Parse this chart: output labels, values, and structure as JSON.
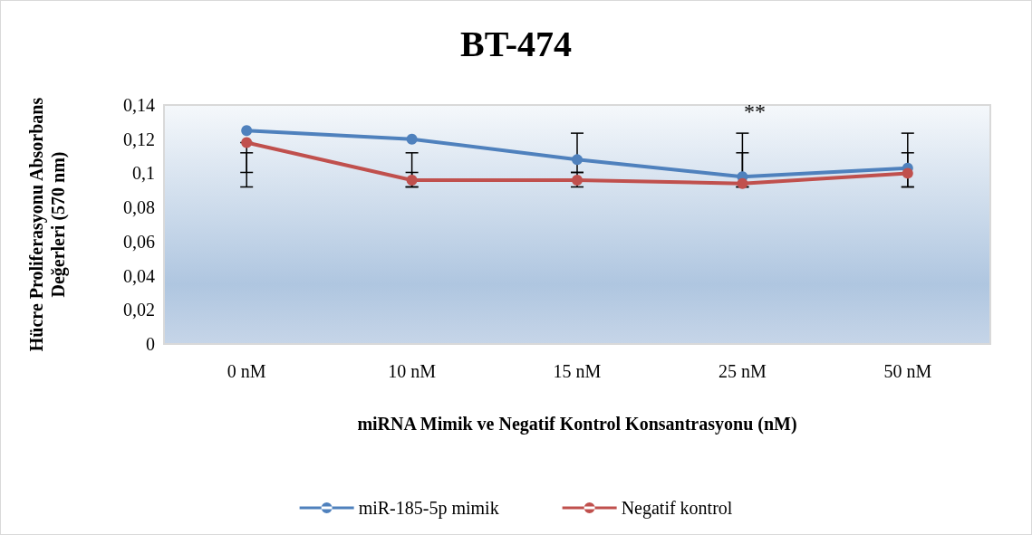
{
  "chart_data": {
    "type": "line",
    "title": "BT-474",
    "xlabel": "miRNA Mimik ve Negatif Kontrol Konsantrasyonu (nM)",
    "ylabel": "Hücre Proliferasyonu Absorbans\nDeğerleri (570 nm)",
    "categories": [
      "0 nM",
      "10 nM",
      "15 nM",
      "25 nM",
      "50 nM"
    ],
    "series": [
      {
        "name": "miR-185-5p mimik",
        "color": "#4f81bd",
        "values": [
          0.125,
          0.12,
          0.108,
          0.098,
          0.103
        ],
        "errors": [
          [
            0.092,
            0.112
          ],
          [
            0.092,
            0.112
          ],
          [
            0.1005,
            0.1235
          ],
          [
            0.092,
            0.1235
          ],
          [
            0.092,
            0.1235
          ]
        ]
      },
      {
        "name": "Negatif kontrol",
        "color": "#c0504d",
        "values": [
          0.118,
          0.096,
          0.096,
          0.094,
          0.1
        ],
        "errors": [
          [
            0.1005,
            0.118
          ],
          [
            0.092,
            0.1005
          ],
          [
            0.092,
            0.1005
          ],
          [
            0.092,
            0.112
          ],
          [
            0.092,
            0.112
          ]
        ]
      }
    ],
    "ylim": [
      0,
      0.14
    ],
    "yticks": [
      {
        "value": 0,
        "label": "0"
      },
      {
        "value": 0.02,
        "label": "0,02"
      },
      {
        "value": 0.04,
        "label": "0,04"
      },
      {
        "value": 0.06,
        "label": "0,06"
      },
      {
        "value": 0.08,
        "label": "0,08"
      },
      {
        "value": 0.1,
        "label": "0,1"
      },
      {
        "value": 0.12,
        "label": "0,12"
      },
      {
        "value": 0.14,
        "label": "0,14"
      }
    ],
    "annotations": [
      "**"
    ],
    "marker": "circle",
    "legend": "bottom",
    "grid": false
  }
}
